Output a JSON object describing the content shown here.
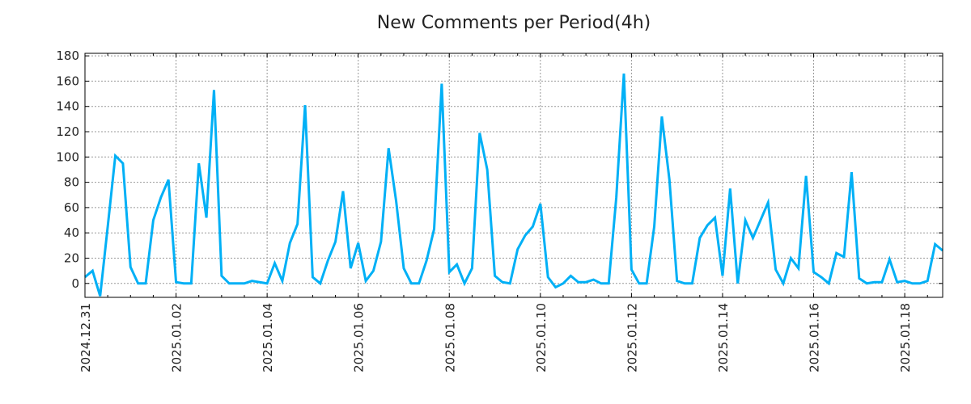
{
  "chart_data": {
    "type": "line",
    "title": "New Comments per Period(4h)",
    "xlabel": "",
    "ylabel": "",
    "x_step_hours": 4,
    "xlim_steps": [
      0,
      113
    ],
    "ylim": [
      -11,
      182
    ],
    "grid": true,
    "line_color": "#00b0f6",
    "yticks": [
      0,
      20,
      40,
      60,
      80,
      100,
      120,
      140,
      160,
      180
    ],
    "xticks": [
      {
        "step": 0,
        "label": "2024.12.31"
      },
      {
        "step": 12,
        "label": "2025.01.02"
      },
      {
        "step": 24,
        "label": "2025.01.04"
      },
      {
        "step": 36,
        "label": "2025.01.06"
      },
      {
        "step": 48,
        "label": "2025.01.08"
      },
      {
        "step": 60,
        "label": "2025.01.10"
      },
      {
        "step": 72,
        "label": "2025.01.12"
      },
      {
        "step": 84,
        "label": "2025.01.14"
      },
      {
        "step": 96,
        "label": "2025.01.16"
      },
      {
        "step": 108,
        "label": "2025.01.18"
      }
    ],
    "series": [
      {
        "name": "New Comments",
        "values": [
          5,
          10,
          -10,
          45,
          101,
          95,
          13,
          0,
          0,
          50,
          68,
          82,
          1,
          0,
          0,
          95,
          52,
          153,
          6,
          0,
          0,
          0,
          2,
          1,
          0,
          16,
          2,
          32,
          47,
          141,
          5,
          0,
          18,
          33,
          73,
          12,
          32,
          2,
          10,
          33,
          107,
          65,
          12,
          0,
          0,
          18,
          43,
          158,
          9,
          15,
          0,
          12,
          119,
          90,
          6,
          1,
          0,
          27,
          38,
          45,
          63,
          5,
          -3,
          0,
          6,
          1,
          1,
          3,
          0,
          0,
          68,
          166,
          11,
          0,
          0,
          45,
          132,
          82,
          2,
          0,
          0,
          36,
          46,
          52,
          6,
          75,
          0,
          50,
          36,
          50,
          64,
          11,
          0,
          20,
          12,
          85,
          9,
          5,
          0,
          24,
          21,
          88,
          4,
          0,
          1,
          1,
          19,
          1,
          2,
          0,
          0,
          2,
          31,
          26
        ]
      }
    ]
  }
}
